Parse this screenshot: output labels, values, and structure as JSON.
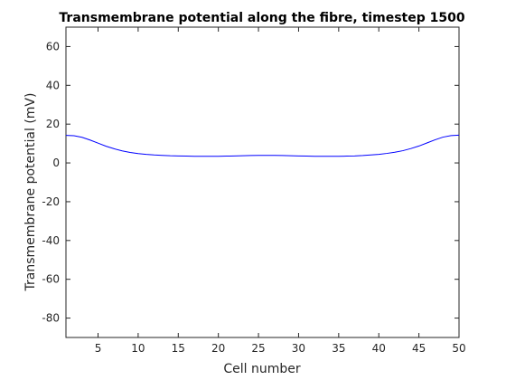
{
  "chart_data": {
    "type": "line",
    "title": "Transmembrane potential along the fibre, timestep 1500",
    "xlabel": "Cell number",
    "ylabel": "Transmembrane potential (mV)",
    "xlim": [
      1,
      50
    ],
    "ylim": [
      -90,
      70
    ],
    "xticks": [
      5,
      10,
      15,
      20,
      25,
      30,
      35,
      40,
      45,
      50
    ],
    "yticks": [
      -80,
      -60,
      -40,
      -20,
      0,
      20,
      40,
      60
    ],
    "grid": false,
    "line_color": "#0000ff",
    "series": [
      {
        "x": [
          1,
          2,
          3,
          4,
          5,
          6,
          7,
          8,
          9,
          10,
          11,
          12,
          13,
          14,
          15,
          16,
          17,
          18,
          19,
          20,
          21,
          22,
          23,
          24,
          25,
          26,
          27,
          28,
          29,
          30,
          31,
          32,
          33,
          34,
          35,
          36,
          37,
          38,
          39,
          40,
          41,
          42,
          43,
          44,
          45,
          46,
          47,
          48,
          49,
          50
        ],
        "values": [
          14.2,
          14.0,
          13.2,
          11.8,
          10.2,
          8.6,
          7.3,
          6.2,
          5.4,
          4.8,
          4.4,
          4.1,
          3.9,
          3.7,
          3.6,
          3.5,
          3.4,
          3.4,
          3.4,
          3.4,
          3.5,
          3.6,
          3.7,
          3.8,
          3.9,
          3.9,
          3.9,
          3.8,
          3.7,
          3.6,
          3.5,
          3.4,
          3.4,
          3.4,
          3.4,
          3.5,
          3.6,
          3.8,
          4.1,
          4.4,
          4.9,
          5.5,
          6.3,
          7.4,
          8.7,
          10.3,
          11.9,
          13.3,
          14.1,
          14.3
        ]
      }
    ]
  }
}
